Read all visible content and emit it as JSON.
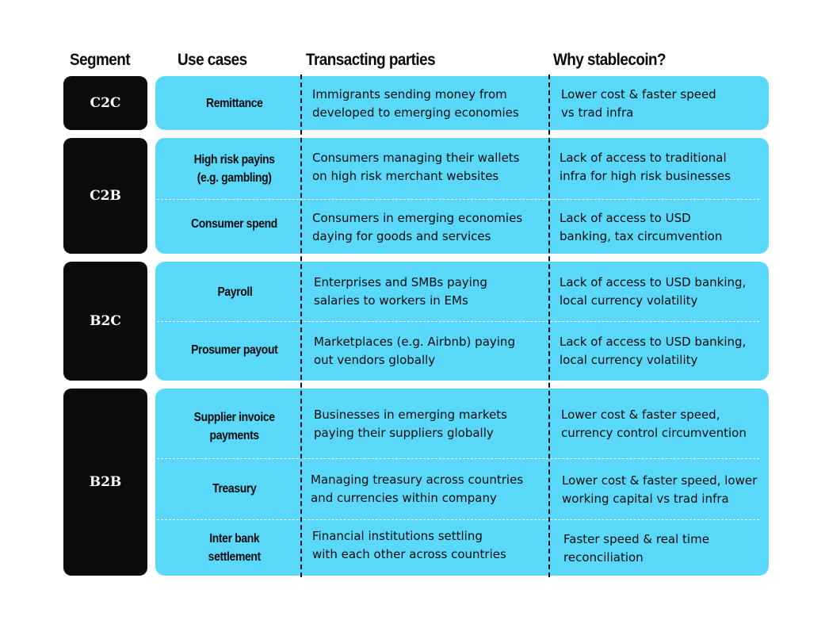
{
  "headers": {
    "segment": "Segment",
    "use_cases": "Use cases",
    "transacting_parties": "Transacting parties",
    "why_stablecoin": "Why stablecoin?"
  },
  "segments": [
    {
      "name": "C2C",
      "rows": [
        {
          "use_case": "Remittance",
          "parties": "Immigrants sending money from\ndeveloped to emerging economies",
          "why": "Lower cost & faster speed\nvs trad infra"
        }
      ]
    },
    {
      "name": "C2B",
      "rows": [
        {
          "use_case": "High risk payins\n(e.g. gambling)",
          "parties": "Consumers managing their wallets\non high risk merchant websites",
          "why": "Lack of access to traditional\ninfra for high risk businesses"
        },
        {
          "use_case": "Consumer spend",
          "parties": "Consumers in emerging economies\ndaying for goods and services",
          "why": "Lack of access to USD\nbanking, tax circumvention"
        }
      ]
    },
    {
      "name": "B2C",
      "rows": [
        {
          "use_case": "Payroll",
          "parties": "Enterprises and SMBs paying\nsalaries to workers in EMs",
          "why": "Lack of access to USD banking,\nlocal currency volatility"
        },
        {
          "use_case": "Prosumer payout",
          "parties": "Marketplaces (e.g. Airbnb) paying\nout vendors globally",
          "why": "Lack of access to USD banking,\nlocal currency volatility"
        }
      ]
    },
    {
      "name": "B2B",
      "rows": [
        {
          "use_case": "Supplier invoice\npayments",
          "parties": "Businesses in emerging markets\npaying their suppliers globally",
          "why": "Lower cost & faster speed,\ncurrency control circumvention"
        },
        {
          "use_case": "Treasury",
          "parties": "Managing treasury across countries\nand currencies within company",
          "why": "Lower cost & faster speed, lower\nworking capital vs trad infra"
        },
        {
          "use_case": "Inter bank\nsettlement",
          "parties": "Financial institutions settling\nwith each other across countries",
          "why": "Faster speed & real time\nreconciliation"
        }
      ]
    }
  ]
}
